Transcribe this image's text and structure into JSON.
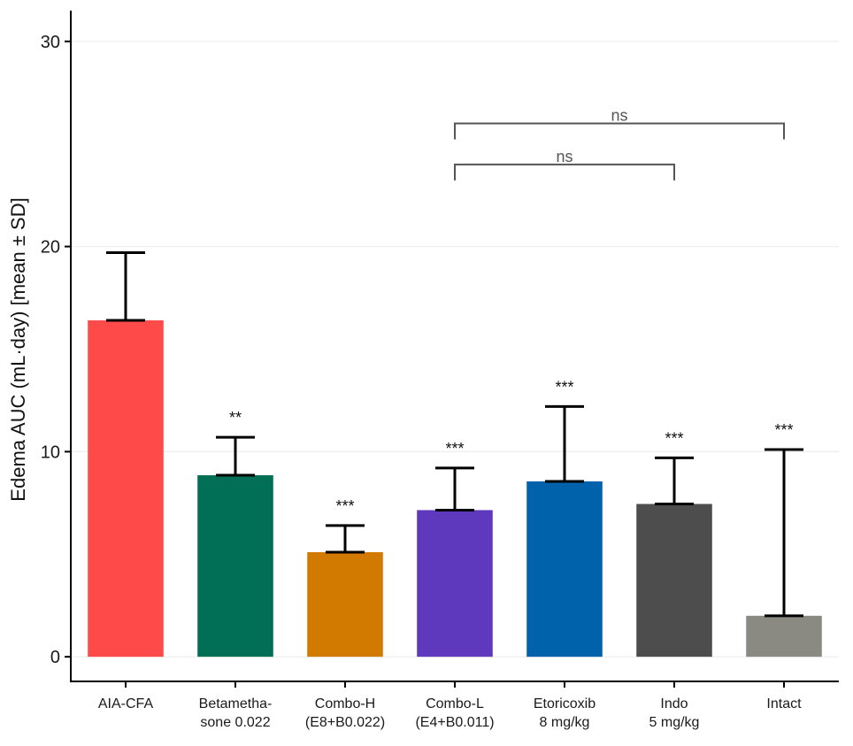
{
  "chart_data": {
    "type": "bar",
    "title": "",
    "xlabel": "",
    "ylabel": "Edema AUC (mL·day) [mean ± SD]",
    "ylim": [
      -1.2,
      31.5
    ],
    "yticks": [
      0,
      10,
      20,
      30
    ],
    "grid": "horizontal",
    "legend": "none",
    "categories": [
      [
        "AIA-CFA"
      ],
      [
        "Betametha-",
        "sone 0.022"
      ],
      [
        "Combo-H",
        "(E8+B0.022)"
      ],
      [
        "Combo-L",
        "(E4+B0.011)"
      ],
      [
        "Etoricoxib",
        "8 mg/kg"
      ],
      [
        "Indo",
        "5 mg/kg"
      ],
      [
        "Intact"
      ]
    ],
    "values": [
      16.4,
      8.85,
      5.1,
      7.15,
      8.55,
      7.45,
      2.0
    ],
    "error_upper": [
      19.7,
      10.7,
      6.4,
      9.2,
      12.2,
      9.7,
      10.1
    ],
    "significance": [
      "",
      "**",
      "***",
      "***",
      "***",
      "***",
      "***"
    ],
    "colors": [
      "#FF4A4A",
      "#006F56",
      "#D27A00",
      "#5E38BD",
      "#0062AB",
      "#4D4D4D",
      "#8A8A82"
    ],
    "comparisons": [
      {
        "from": 3,
        "to": 6,
        "label": "ns",
        "y": 26.0
      },
      {
        "from": 3,
        "to": 5,
        "label": "ns",
        "y": 24.0
      }
    ]
  }
}
